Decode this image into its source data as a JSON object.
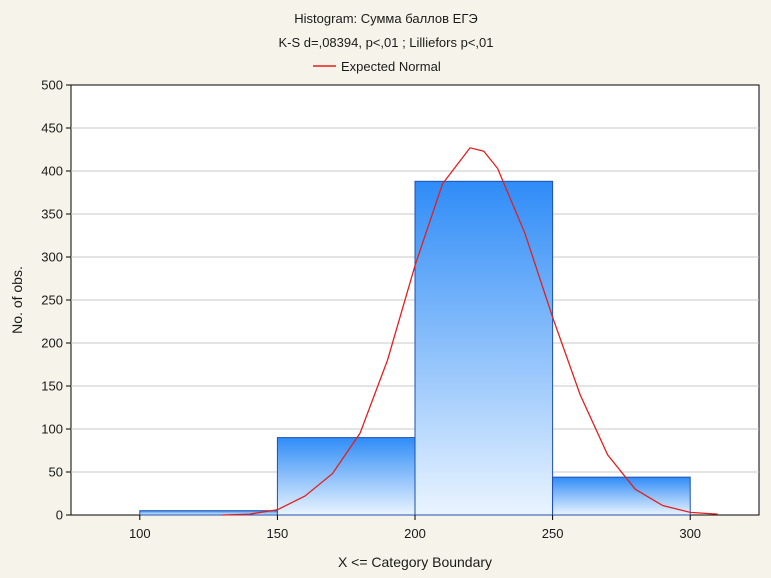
{
  "chart_data": {
    "type": "bar",
    "title": "Histogram: Сумма баллов ЕГЭ",
    "subtitle": "K-S d=,08394, p<,01 ; Lilliefors p<,01",
    "legend": [
      {
        "name": "Expected Normal",
        "color": "#e02020"
      }
    ],
    "legend_position": "top-center",
    "xlabel": "X <= Category Boundary",
    "ylabel": "No. of obs.",
    "xlim": [
      75,
      325
    ],
    "ylim": [
      0,
      500
    ],
    "x_ticks": [
      100,
      150,
      200,
      250,
      300
    ],
    "y_ticks": [
      0,
      50,
      100,
      150,
      200,
      250,
      300,
      350,
      400,
      450,
      500
    ],
    "grid": true,
    "bins": [
      {
        "from": 100,
        "to": 150,
        "value": 5
      },
      {
        "from": 150,
        "to": 200,
        "value": 90
      },
      {
        "from": 200,
        "to": 250,
        "value": 388
      },
      {
        "from": 250,
        "to": 300,
        "value": 44
      }
    ],
    "expected_normal": {
      "x": [
        130,
        140,
        150,
        160,
        170,
        180,
        190,
        200,
        210,
        220,
        225,
        230,
        240,
        250,
        260,
        270,
        280,
        290,
        300,
        310
      ],
      "y": [
        0,
        1,
        6,
        22,
        48,
        95,
        180,
        290,
        385,
        427,
        423,
        403,
        327,
        230,
        140,
        70,
        30,
        11,
        3,
        1
      ]
    },
    "colors": {
      "bar_top": "#2f8cf7",
      "bar_bottom": "#eaf4ff",
      "bar_stroke": "#1f4fb0",
      "curve": "#e02020",
      "plot_background": "#ffffff",
      "page_background": "#f6f4ea"
    }
  }
}
